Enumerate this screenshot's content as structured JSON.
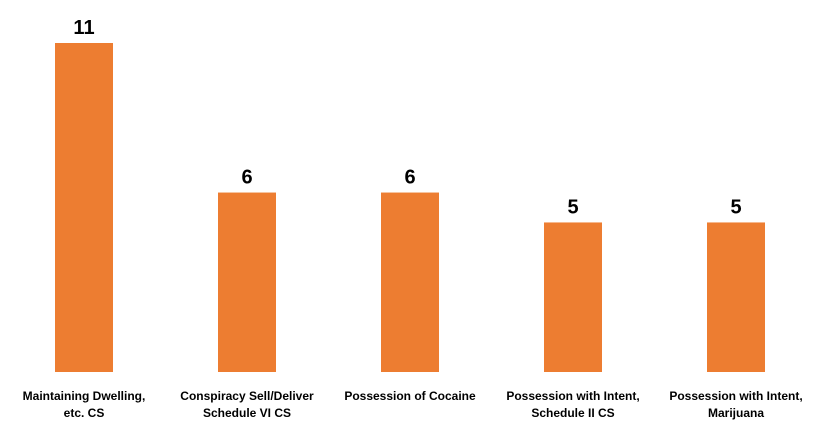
{
  "chart_data": {
    "type": "bar",
    "categories": [
      [
        "Maintaining Dwelling,",
        "etc. CS"
      ],
      [
        "Conspiracy Sell/Deliver",
        "Schedule VI CS"
      ],
      [
        "Possession of Cocaine"
      ],
      [
        "Possession with Intent,",
        "Schedule II CS"
      ],
      [
        "Possession with Intent,",
        "Marijuana"
      ]
    ],
    "values": [
      11,
      6,
      6,
      5,
      5
    ],
    "data_labels": [
      "11",
      "6",
      "6",
      "5",
      "5"
    ],
    "ylim": [
      0,
      11
    ],
    "grid": false,
    "legend": "none",
    "bar_color": "#ED7D31"
  }
}
